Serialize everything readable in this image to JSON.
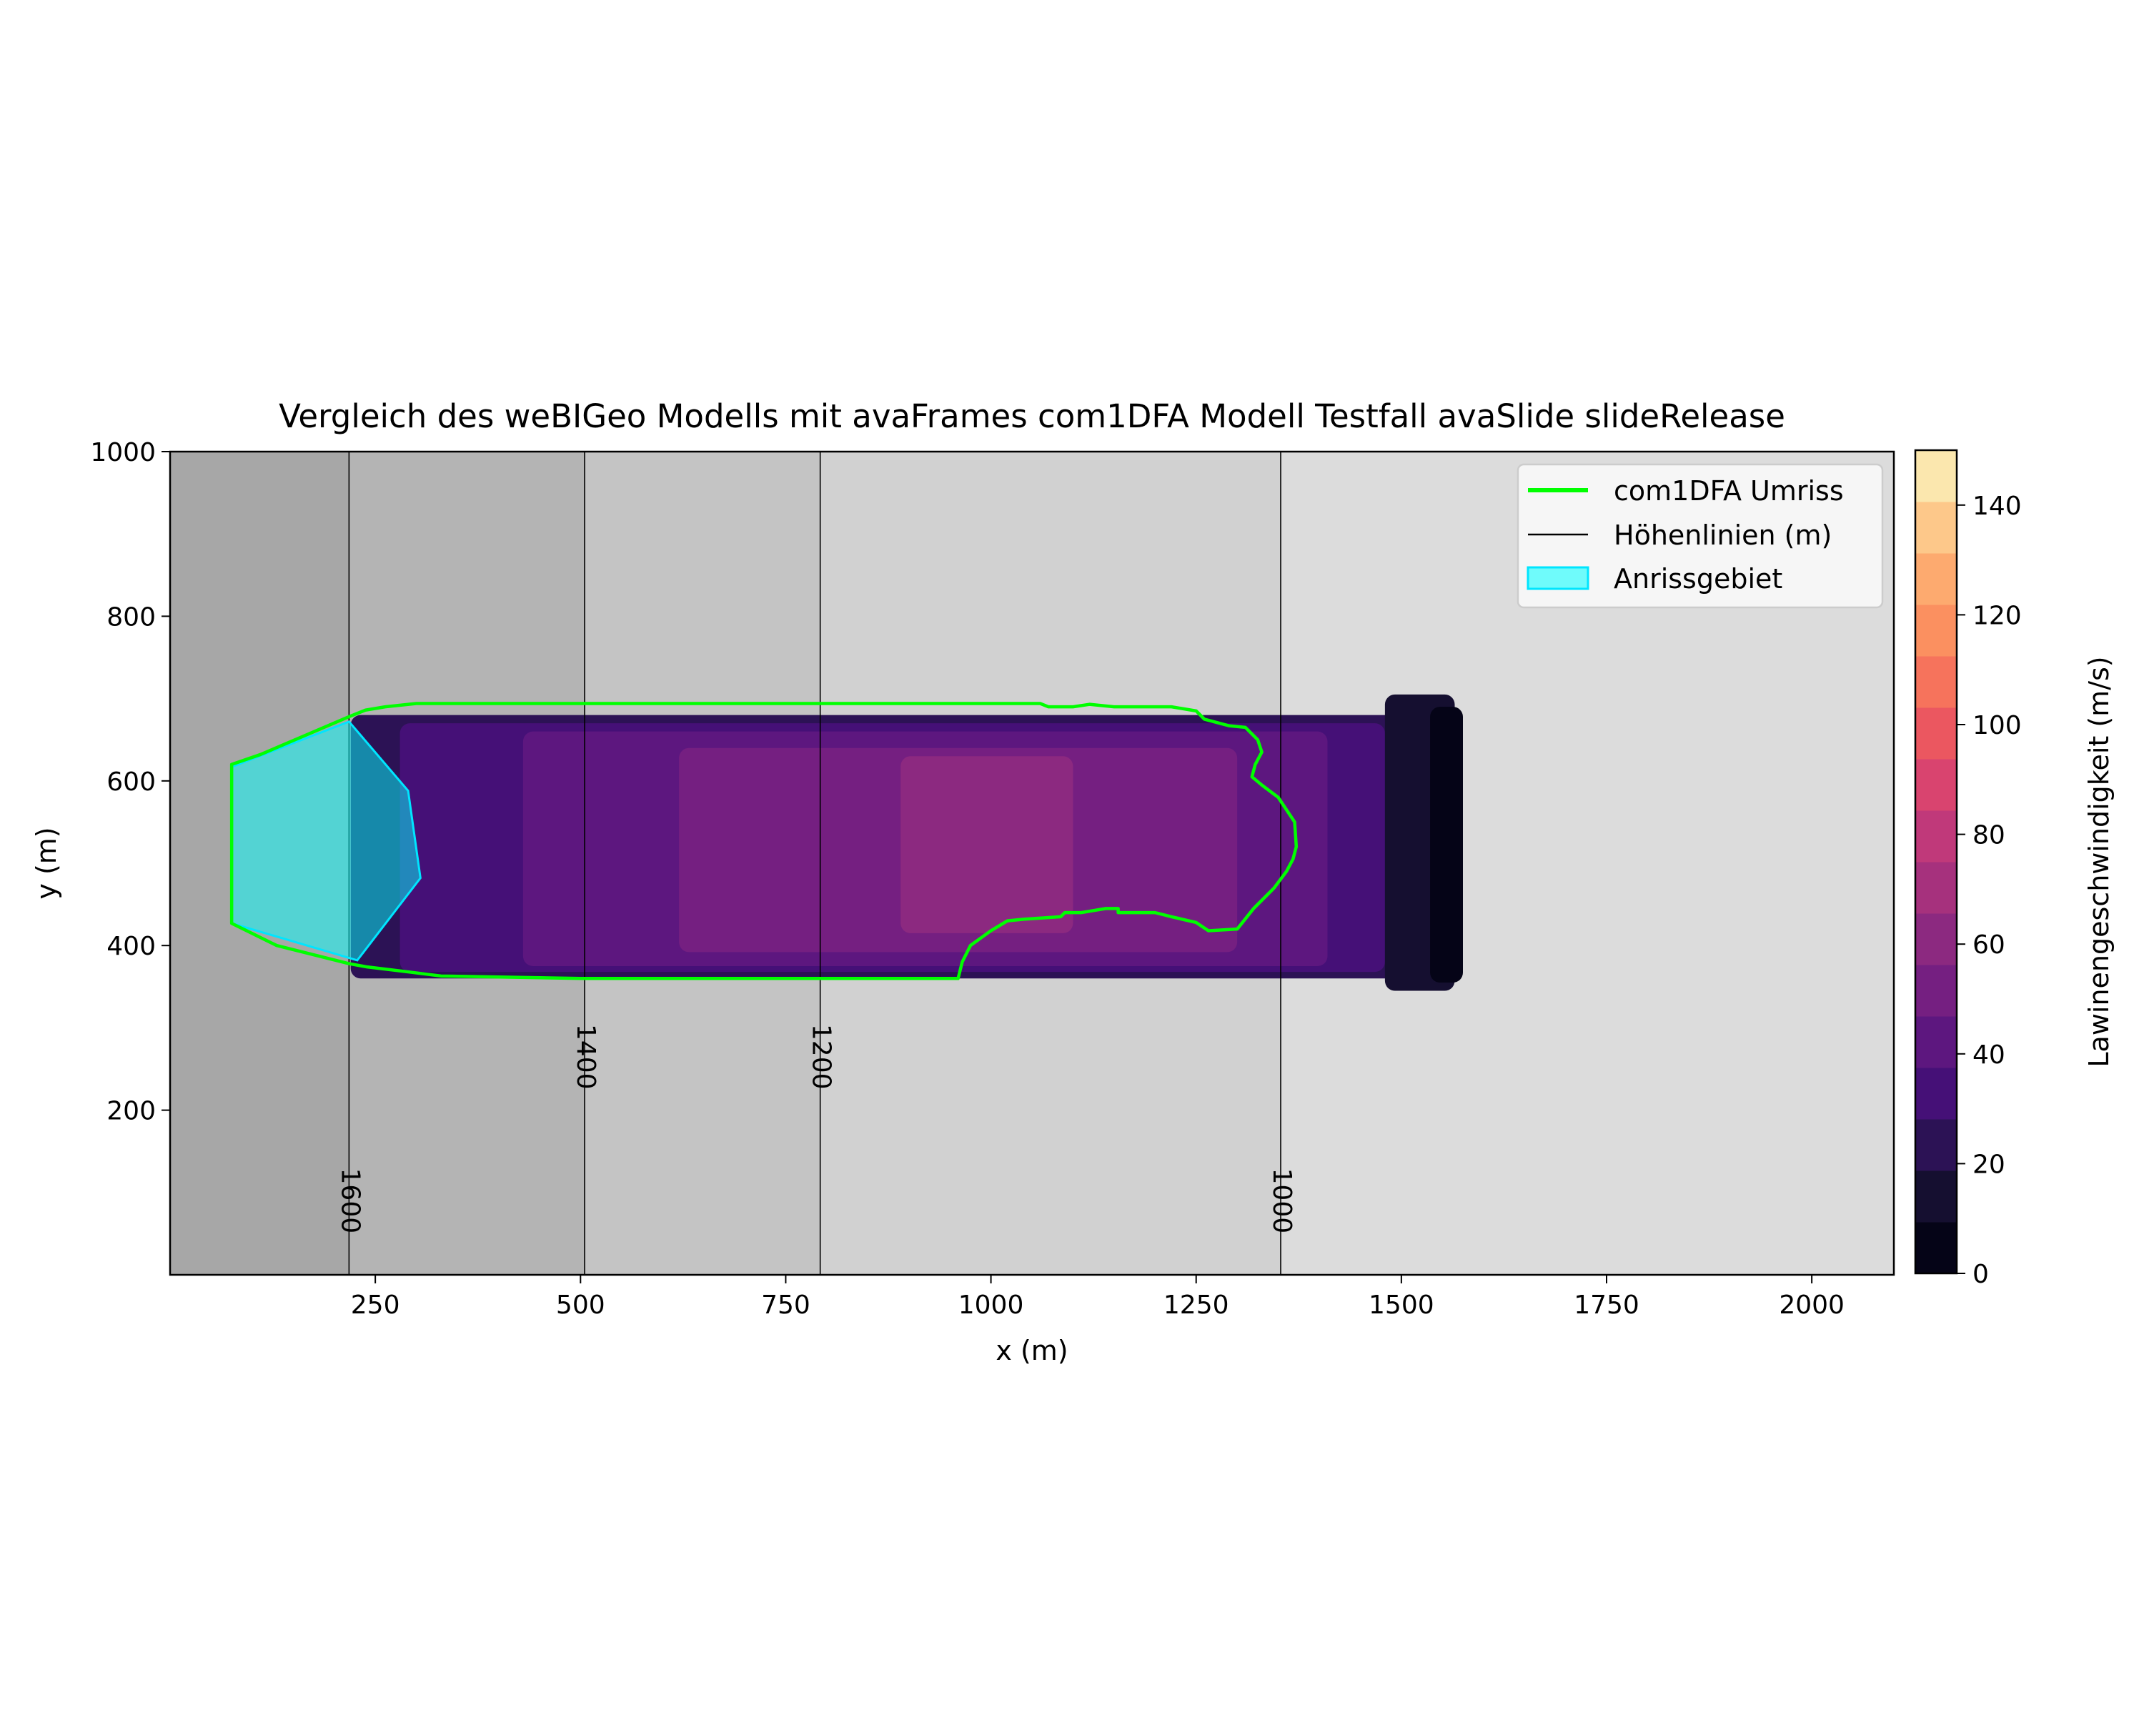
{
  "chart_data": {
    "type": "heatmap",
    "title": "Vergleich des weBIGeo Modells mit avaFrames com1DFA Modell Testfall avaSlide slideRelease",
    "xlabel": "x (m)",
    "ylabel": "y (m)",
    "xlim": [
      0,
      2100
    ],
    "ylim": [
      0,
      1000
    ],
    "x_ticks": [
      250,
      500,
      750,
      1000,
      1250,
      1500,
      1750,
      2000
    ],
    "y_ticks": [
      200,
      400,
      600,
      800,
      1000
    ],
    "x_tick_labels": [
      "250",
      "500",
      "750",
      "1000",
      "1250",
      "1500",
      "1750",
      "2000"
    ],
    "y_tick_labels": [
      "200",
      "400",
      "600",
      "800",
      "1000"
    ],
    "legend": {
      "placement": "top-right",
      "entries": [
        {
          "label": "com1DFA Umriss",
          "color": "#00ff00",
          "kind": "line"
        },
        {
          "label": "Höhenlinien (m)",
          "color": "#000000",
          "kind": "line"
        },
        {
          "label": "Anrissgebiet",
          "color": "#00ffff",
          "kind": "patch"
        }
      ]
    },
    "terrain_bands": [
      {
        "x0": 0,
        "x1": 218,
        "color": "#a7a7a7"
      },
      {
        "x0": 218,
        "x1": 505,
        "color": "#b4b4b4"
      },
      {
        "x0": 505,
        "x1": 792,
        "color": "#c4c4c4"
      },
      {
        "x0": 792,
        "x1": 1353,
        "color": "#d1d1d1"
      },
      {
        "x0": 1353,
        "x1": 2100,
        "color": "#dcdcdc"
      }
    ],
    "contours": [
      {
        "level": "1600",
        "x": 218,
        "label_y": 90
      },
      {
        "level": "1400",
        "x": 505,
        "label_y": 265
      },
      {
        "level": "1200",
        "x": 792,
        "label_y": 265
      },
      {
        "level": "1000",
        "x": 1353,
        "label_y": 90
      }
    ],
    "colorbar": {
      "label": "Lawinengeschwindigkeit (m/s)",
      "range": [
        0,
        150
      ],
      "ticks": [
        0,
        20,
        40,
        60,
        80,
        100,
        120,
        140
      ],
      "tick_labels": [
        "0",
        "20",
        "40",
        "60",
        "80",
        "100",
        "120",
        "140"
      ],
      "colors": [
        "#050417",
        "#150f30",
        "#2c1255",
        "#451077",
        "#5d177f",
        "#751f81",
        "#8c2980",
        "#a6317d",
        "#c0397a",
        "#d9446f",
        "#eb5760",
        "#f6735c",
        "#fb9060",
        "#fdaa6f",
        "#fdc88a",
        "#fbe7ae"
      ]
    },
    "velocity_zones": [
      {
        "x0": 220,
        "x1": 1540,
        "y0": 360,
        "y1": 680,
        "value": 25
      },
      {
        "x0": 280,
        "x1": 1480,
        "y0": 368,
        "y1": 670,
        "value": 35
      },
      {
        "x0": 430,
        "x1": 1410,
        "y0": 375,
        "y1": 660,
        "value": 45
      },
      {
        "x0": 620,
        "x1": 1300,
        "y0": 392,
        "y1": 640,
        "value": 55
      },
      {
        "x0": 890,
        "x1": 1100,
        "y0": 415,
        "y1": 630,
        "value": 65
      },
      {
        "x0": 1480,
        "x1": 1565,
        "y0": 345,
        "y1": 705,
        "value": 15
      },
      {
        "x0": 1535,
        "x1": 1575,
        "y0": 355,
        "y1": 690,
        "value": 5
      }
    ],
    "com1dfa_outline": [
      [
        75,
        620
      ],
      [
        110,
        632
      ],
      [
        218,
        678
      ],
      [
        238,
        686
      ],
      [
        262,
        690
      ],
      [
        300,
        694
      ],
      [
        1060,
        694
      ],
      [
        1070,
        690
      ],
      [
        1100,
        690
      ],
      [
        1120,
        693
      ],
      [
        1150,
        690
      ],
      [
        1220,
        690
      ],
      [
        1250,
        685
      ],
      [
        1260,
        675
      ],
      [
        1290,
        667
      ],
      [
        1310,
        665
      ],
      [
        1325,
        650
      ],
      [
        1330,
        635
      ],
      [
        1322,
        620
      ],
      [
        1318,
        605
      ],
      [
        1330,
        595
      ],
      [
        1350,
        580
      ],
      [
        1370,
        550
      ],
      [
        1372,
        520
      ],
      [
        1368,
        505
      ],
      [
        1360,
        490
      ],
      [
        1345,
        470
      ],
      [
        1320,
        445
      ],
      [
        1300,
        420
      ],
      [
        1265,
        418
      ],
      [
        1250,
        428
      ],
      [
        1220,
        435
      ],
      [
        1200,
        440
      ],
      [
        1155,
        440
      ],
      [
        1155,
        445
      ],
      [
        1140,
        445
      ],
      [
        1110,
        440
      ],
      [
        1090,
        440
      ],
      [
        1085,
        435
      ],
      [
        1040,
        432
      ],
      [
        1020,
        430
      ],
      [
        1000,
        418
      ],
      [
        975,
        400
      ],
      [
        965,
        380
      ],
      [
        960,
        360
      ],
      [
        500,
        360
      ],
      [
        330,
        363
      ],
      [
        290,
        368
      ],
      [
        240,
        374
      ],
      [
        218,
        378
      ],
      [
        130,
        400
      ],
      [
        75,
        427
      ]
    ],
    "release_area": [
      [
        75,
        617
      ],
      [
        218,
        672
      ],
      [
        290,
        588
      ],
      [
        305,
        482
      ],
      [
        228,
        382
      ],
      [
        75,
        427
      ]
    ]
  }
}
